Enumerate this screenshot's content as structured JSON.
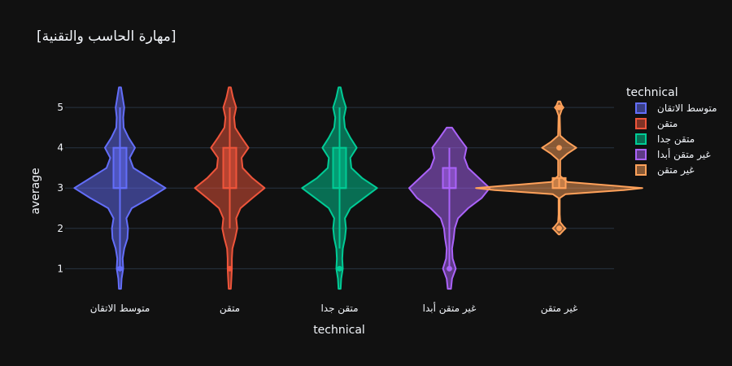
{
  "chart_data": {
    "type": "violin",
    "title": "[مهارة الحاسب والتقنية]",
    "xlabel": "technical",
    "ylabel": "average",
    "ylim": [
      0.3,
      5.75
    ],
    "yticks": [
      1,
      2,
      3,
      4,
      5
    ],
    "grid": true,
    "legend_title": "technical",
    "legend_position": "right",
    "series": [
      {
        "name": "متوسط الاتقان",
        "color": "#636efa",
        "box": {
          "q1": 3,
          "median": 3,
          "q3": 4,
          "whisker_low": 1,
          "whisker_high": 5
        },
        "outliers": [
          1
        ],
        "density": [
          [
            0.5,
            0.02
          ],
          [
            0.75,
            0.03
          ],
          [
            1,
            0.06
          ],
          [
            1.25,
            0.05
          ],
          [
            1.5,
            0.08
          ],
          [
            1.75,
            0.14
          ],
          [
            2,
            0.15
          ],
          [
            2.25,
            0.12
          ],
          [
            2.5,
            0.22
          ],
          [
            2.75,
            0.55
          ],
          [
            3,
            0.85
          ],
          [
            3.25,
            0.55
          ],
          [
            3.5,
            0.25
          ],
          [
            3.75,
            0.18
          ],
          [
            4,
            0.28
          ],
          [
            4.25,
            0.16
          ],
          [
            4.5,
            0.07
          ],
          [
            4.75,
            0.06
          ],
          [
            5,
            0.08
          ],
          [
            5.25,
            0.05
          ],
          [
            5.5,
            0.02
          ]
        ]
      },
      {
        "name": "متقن",
        "color": "#ef553b",
        "box": {
          "q1": 3,
          "median": 3,
          "q3": 4,
          "whisker_low": 2,
          "whisker_high": 5
        },
        "outliers": [
          1
        ],
        "density": [
          [
            0.5,
            0.02
          ],
          [
            0.75,
            0.03
          ],
          [
            1,
            0.04
          ],
          [
            1.25,
            0.04
          ],
          [
            1.5,
            0.05
          ],
          [
            1.75,
            0.1
          ],
          [
            2,
            0.14
          ],
          [
            2.25,
            0.12
          ],
          [
            2.5,
            0.2
          ],
          [
            2.75,
            0.42
          ],
          [
            3,
            0.65
          ],
          [
            3.25,
            0.42
          ],
          [
            3.5,
            0.24
          ],
          [
            3.75,
            0.22
          ],
          [
            4,
            0.35
          ],
          [
            4.25,
            0.22
          ],
          [
            4.5,
            0.1
          ],
          [
            4.75,
            0.08
          ],
          [
            5,
            0.12
          ],
          [
            5.25,
            0.06
          ],
          [
            5.5,
            0.02
          ]
        ]
      },
      {
        "name": "متقن جدا",
        "color": "#00cc96",
        "box": {
          "q1": 3,
          "median": 3,
          "q3": 4,
          "whisker_low": 1.5,
          "whisker_high": 5
        },
        "outliers": [
          1
        ],
        "density": [
          [
            0.5,
            0.02
          ],
          [
            0.75,
            0.03
          ],
          [
            1,
            0.06
          ],
          [
            1.25,
            0.05
          ],
          [
            1.5,
            0.06
          ],
          [
            1.75,
            0.1
          ],
          [
            2,
            0.12
          ],
          [
            2.25,
            0.1
          ],
          [
            2.5,
            0.2
          ],
          [
            2.75,
            0.45
          ],
          [
            3,
            0.7
          ],
          [
            3.25,
            0.42
          ],
          [
            3.5,
            0.22
          ],
          [
            3.75,
            0.2
          ],
          [
            4,
            0.32
          ],
          [
            4.25,
            0.2
          ],
          [
            4.5,
            0.1
          ],
          [
            4.75,
            0.08
          ],
          [
            5,
            0.12
          ],
          [
            5.25,
            0.06
          ],
          [
            5.5,
            0.02
          ]
        ]
      },
      {
        "name": "غير متقن أبدا",
        "color": "#ab63fa",
        "box": {
          "q1": 3,
          "median": 3,
          "q3": 3.5,
          "whisker_low": 1,
          "whisker_high": 4
        },
        "outliers": [
          1
        ],
        "density": [
          [
            0.5,
            0.03
          ],
          [
            0.75,
            0.05
          ],
          [
            1,
            0.12
          ],
          [
            1.25,
            0.06
          ],
          [
            1.5,
            0.05
          ],
          [
            1.75,
            0.08
          ],
          [
            2,
            0.1
          ],
          [
            2.25,
            0.16
          ],
          [
            2.5,
            0.35
          ],
          [
            2.75,
            0.6
          ],
          [
            3,
            0.75
          ],
          [
            3.25,
            0.55
          ],
          [
            3.5,
            0.35
          ],
          [
            3.75,
            0.28
          ],
          [
            4,
            0.32
          ],
          [
            4.25,
            0.18
          ],
          [
            4.5,
            0.05
          ]
        ]
      },
      {
        "name": "غير متقن",
        "color": "#ffa15a",
        "box": {
          "q1": 3,
          "median": 3,
          "q3": 3.25,
          "whisker_low": 3,
          "whisker_high": 3.25
        },
        "outliers": [
          2,
          4,
          5
        ],
        "density": [
          [
            1.85,
            0.01
          ],
          [
            1.95,
            0.08
          ],
          [
            2,
            0.12
          ],
          [
            2.05,
            0.08
          ],
          [
            2.15,
            0.02
          ],
          [
            2.35,
            0.01
          ],
          [
            2.75,
            0.01
          ],
          [
            2.85,
            0.12
          ],
          [
            2.95,
            1.2
          ],
          [
            3,
            1.55
          ],
          [
            3.05,
            1.1
          ],
          [
            3.15,
            0.15
          ],
          [
            3.3,
            0.02
          ],
          [
            3.7,
            0.02
          ],
          [
            3.85,
            0.15
          ],
          [
            4,
            0.32
          ],
          [
            4.15,
            0.15
          ],
          [
            4.3,
            0.02
          ],
          [
            4.8,
            0.01
          ],
          [
            4.95,
            0.05
          ],
          [
            5,
            0.08
          ],
          [
            5.05,
            0.05
          ],
          [
            5.15,
            0.02
          ]
        ]
      }
    ]
  }
}
